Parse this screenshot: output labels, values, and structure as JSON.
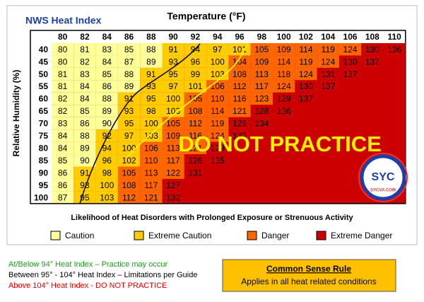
{
  "header": {
    "title": "NWS Heat Index",
    "temperature_label": "Temperature (°F)"
  },
  "table": {
    "row_label": "Relative Humidity (%)",
    "columns": [
      80,
      82,
      84,
      86,
      88,
      90,
      92,
      94,
      96,
      98,
      100,
      102,
      104,
      106,
      108,
      110
    ],
    "rows": [
      {
        "label": 40,
        "values": [
          80,
          81,
          83,
          85,
          88,
          91,
          94,
          97,
          101,
          105,
          109,
          114,
          119,
          124,
          130,
          136
        ],
        "levels": [
          0,
          0,
          0,
          0,
          0,
          1,
          1,
          1,
          1,
          2,
          2,
          2,
          2,
          2,
          3,
          3
        ]
      },
      {
        "label": 45,
        "values": [
          80,
          82,
          84,
          87,
          89,
          93,
          96,
          100,
          104,
          109,
          114,
          119,
          124,
          130,
          137
        ],
        "levels": [
          0,
          0,
          0,
          0,
          0,
          1,
          1,
          1,
          2,
          2,
          2,
          2,
          2,
          3,
          3
        ]
      },
      {
        "label": 50,
        "values": [
          81,
          83,
          85,
          88,
          91,
          95,
          99,
          103,
          108,
          113,
          118,
          124,
          131,
          137
        ],
        "levels": [
          0,
          0,
          0,
          0,
          1,
          1,
          1,
          1,
          2,
          2,
          2,
          2,
          3,
          3
        ]
      },
      {
        "label": 55,
        "values": [
          81,
          84,
          86,
          89,
          93,
          97,
          101,
          106,
          112,
          117,
          124,
          130,
          137
        ],
        "levels": [
          0,
          0,
          0,
          0,
          1,
          1,
          1,
          2,
          2,
          2,
          2,
          3,
          3
        ]
      },
      {
        "label": 60,
        "values": [
          82,
          84,
          88,
          91,
          95,
          100,
          105,
          110,
          116,
          123,
          129,
          137
        ],
        "levels": [
          0,
          0,
          0,
          1,
          1,
          1,
          2,
          2,
          2,
          2,
          3,
          3
        ]
      },
      {
        "label": 65,
        "values": [
          82,
          85,
          89,
          93,
          98,
          103,
          108,
          114,
          121,
          128,
          136
        ],
        "levels": [
          0,
          0,
          0,
          1,
          1,
          1,
          2,
          2,
          2,
          3,
          3
        ]
      },
      {
        "label": 70,
        "values": [
          83,
          86,
          90,
          95,
          100,
          105,
          112,
          119,
          126,
          134
        ],
        "levels": [
          0,
          0,
          0,
          1,
          1,
          2,
          2,
          2,
          3,
          3
        ]
      },
      {
        "label": 75,
        "values": [
          84,
          88,
          92,
          97,
          103,
          109,
          116,
          124,
          132
        ],
        "levels": [
          0,
          0,
          1,
          1,
          1,
          2,
          2,
          2,
          3
        ]
      },
      {
        "label": 80,
        "values": [
          84,
          89,
          94,
          100,
          106,
          113,
          121,
          129
        ],
        "levels": [
          0,
          0,
          1,
          1,
          2,
          2,
          2,
          3
        ]
      },
      {
        "label": 85,
        "values": [
          85,
          90,
          96,
          102,
          110,
          117,
          126,
          135
        ],
        "levels": [
          0,
          0,
          1,
          1,
          2,
          2,
          3,
          3
        ]
      },
      {
        "label": 90,
        "values": [
          86,
          91,
          98,
          105,
          113,
          122,
          131
        ],
        "levels": [
          0,
          1,
          1,
          2,
          2,
          2,
          3
        ]
      },
      {
        "label": 95,
        "values": [
          86,
          93,
          100,
          108,
          117,
          127
        ],
        "levels": [
          0,
          1,
          1,
          2,
          2,
          3
        ]
      },
      {
        "label": 100,
        "values": [
          87,
          95,
          103,
          112,
          121,
          132
        ],
        "levels": [
          0,
          1,
          1,
          2,
          2,
          3
        ]
      }
    ]
  },
  "caption": "Likelihood of Heat Disorders with Prolonged Exposure or Strenuous Activity",
  "legend": [
    {
      "label": "Caution",
      "color": "#ffff99"
    },
    {
      "label": "Extreme Caution",
      "color": "#ffcc00"
    },
    {
      "label": "Danger",
      "color": "#ff6600"
    },
    {
      "label": "Extreme Danger",
      "color": "#cc0000"
    }
  ],
  "overlay": "DO NOT PRACTICE",
  "notes": [
    {
      "text": "At/Below 94° Heat Index  – Practice may occur",
      "color": "#1f9a1f"
    },
    {
      "text": "Between 95° - 104° Heat Index – Limitations per Guide",
      "color": "#000000"
    },
    {
      "text": "Above 104° Heat Index - DO NOT PRACTICE",
      "color": "#e00000"
    }
  ],
  "rule_box": {
    "title": "Common Sense Rule",
    "text": "Applies in all heat related conditions"
  },
  "logo": {
    "text": "SYC",
    "url": "SYCVA.COM"
  }
}
